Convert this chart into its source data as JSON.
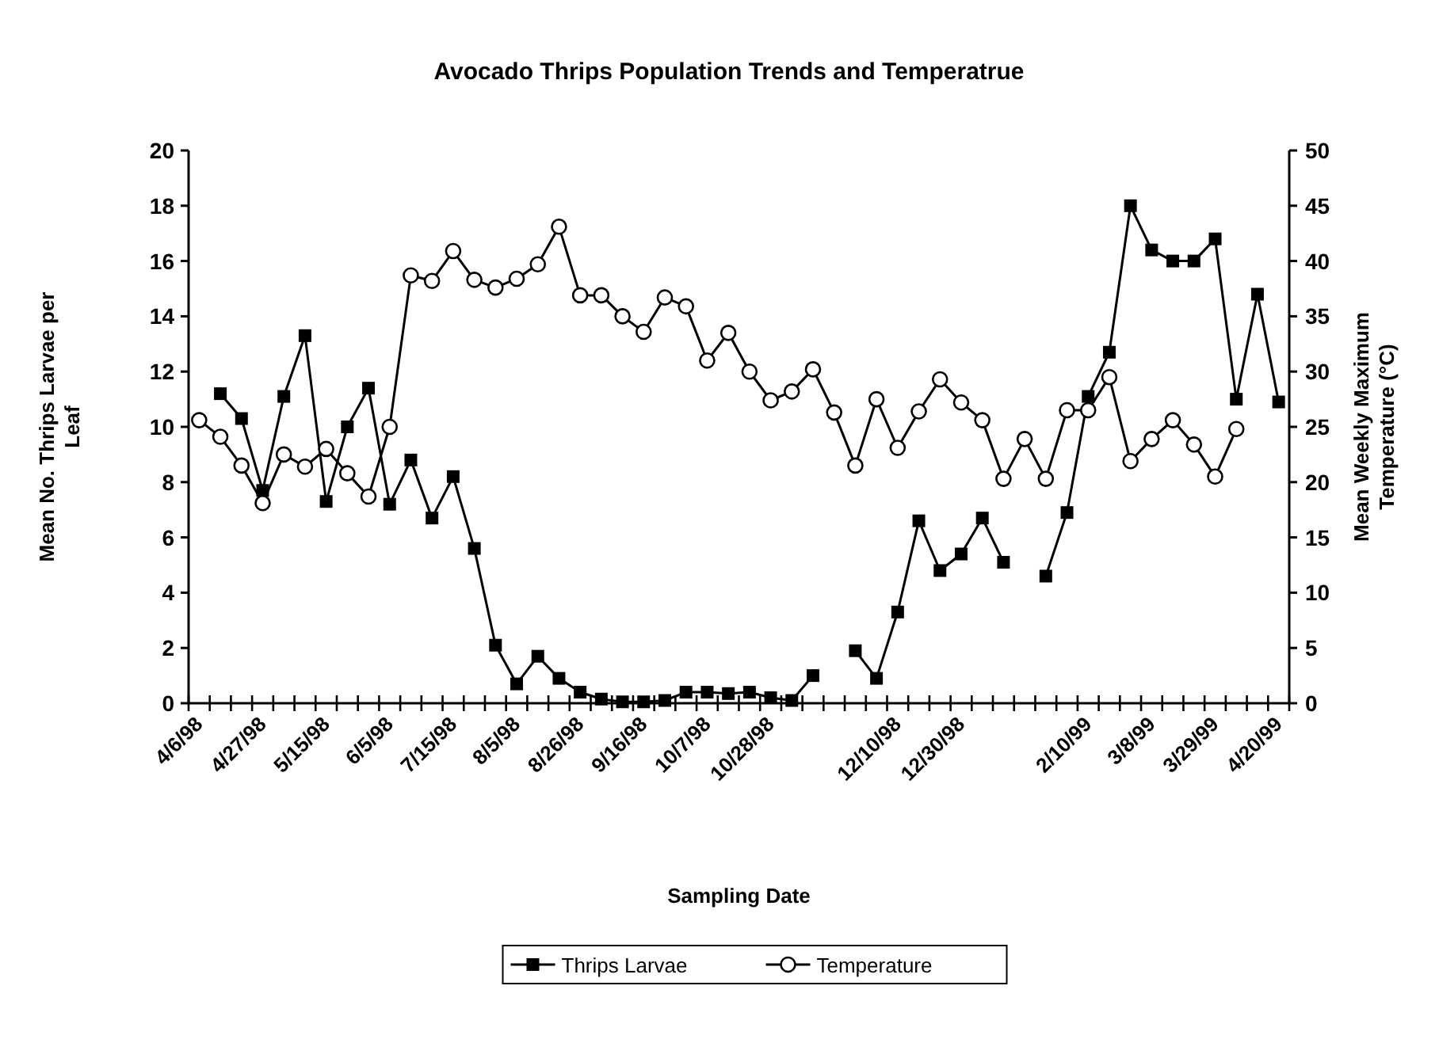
{
  "chart_data": {
    "type": "line",
    "title": "Avocado Thrips Population Trends and Temperatrue",
    "xlabel": "Sampling Date",
    "ylabel": "Mean No. Thrips Larvae per Leaf",
    "y2label": "Mean Weekly Maximum Temperature (°C)",
    "categories": [
      "4/6/98",
      null,
      null,
      "4/27/98",
      null,
      null,
      "5/15/98",
      null,
      null,
      "6/5/98",
      null,
      null,
      "7/15/98",
      null,
      null,
      "8/5/98",
      null,
      null,
      "8/26/98",
      null,
      null,
      "9/16/98",
      null,
      null,
      "10/7/98",
      null,
      null,
      "10/28/98",
      null,
      null,
      null,
      null,
      null,
      "12/10/98",
      null,
      null,
      "12/30/98",
      null,
      null,
      null,
      null,
      null,
      "2/10/99",
      null,
      null,
      "3/8/99",
      null,
      null,
      "3/29/99",
      null,
      null,
      "4/20/99"
    ],
    "series": [
      {
        "name": "Thrips Larvae",
        "color": "#000000",
        "marker": "square",
        "values": [
          null,
          11.2,
          10.3,
          7.7,
          11.1,
          13.3,
          7.3,
          10.0,
          11.4,
          7.2,
          8.8,
          6.7,
          8.2,
          5.6,
          2.1,
          0.7,
          1.7,
          0.9,
          0.4,
          0.15,
          0.05,
          0.05,
          0.1,
          0.4,
          0.4,
          0.35,
          0.4,
          0.2,
          0.1,
          1.0,
          null,
          1.9,
          0.9,
          3.3,
          6.6,
          4.8,
          5.4,
          6.7,
          5.1,
          null,
          4.6,
          6.9,
          11.1,
          12.7,
          18.0,
          16.4,
          16.0,
          16.0,
          16.8,
          11.0,
          14.8,
          10.9
        ]
      },
      {
        "name": "Temperature",
        "color": "#000000",
        "marker": "circle",
        "axis": "y2",
        "values": [
          25.6,
          24.1,
          21.5,
          18.1,
          22.5,
          21.4,
          23.0,
          20.8,
          18.7,
          25.0,
          38.7,
          38.2,
          40.9,
          38.3,
          37.6,
          38.4,
          39.7,
          43.1,
          36.9,
          36.9,
          35.0,
          33.6,
          36.7,
          35.9,
          31.0,
          33.5,
          30.0,
          27.4,
          28.2,
          30.2,
          26.3,
          21.5,
          27.5,
          23.1,
          26.4,
          29.3,
          27.2,
          25.6,
          20.3,
          23.9,
          20.3,
          26.5,
          26.5,
          29.5,
          21.9,
          23.9,
          25.6,
          23.4,
          20.5,
          24.8,
          null,
          null
        ]
      }
    ],
    "ylim": [
      0,
      20
    ],
    "yticks": [
      0,
      2,
      4,
      6,
      8,
      10,
      12,
      14,
      16,
      18,
      20
    ],
    "y2lim": [
      0,
      50
    ],
    "y2ticks": [
      0,
      5,
      10,
      15,
      20,
      25,
      30,
      35,
      40,
      45,
      50
    ],
    "grid": false,
    "legend": "bottom"
  }
}
